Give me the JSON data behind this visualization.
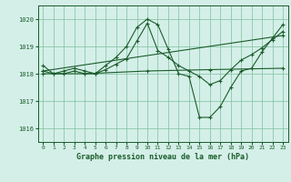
{
  "title": "Graphe pression niveau de la mer (hPa)",
  "background_color": "#d4efe8",
  "line_color": "#1a5c2a",
  "grid_color": "#7fbfa0",
  "ylim": [
    1015.5,
    1020.5
  ],
  "xlim": [
    -0.5,
    23.5
  ],
  "yticks": [
    1016,
    1017,
    1018,
    1019,
    1020
  ],
  "xticks": [
    0,
    1,
    2,
    3,
    4,
    5,
    6,
    7,
    8,
    9,
    10,
    11,
    12,
    13,
    14,
    15,
    16,
    17,
    18,
    19,
    20,
    21,
    22,
    23
  ],
  "series": [
    {
      "x": [
        0,
        1,
        2,
        3,
        4,
        5,
        6,
        7,
        8,
        9,
        10,
        11,
        12,
        13,
        14,
        15,
        16,
        17,
        18,
        19,
        20,
        21,
        22,
        23
      ],
      "y": [
        1018.3,
        1018.0,
        1018.1,
        1018.2,
        1018.1,
        1018.0,
        1018.3,
        1018.6,
        1019.0,
        1019.7,
        1020.0,
        1019.8,
        1018.9,
        1018.0,
        1017.9,
        1016.4,
        1016.4,
        1016.8,
        1017.5,
        1018.1,
        1018.2,
        1018.8,
        1019.3,
        1019.8
      ]
    },
    {
      "x": [
        0,
        23
      ],
      "y": [
        1018.1,
        1019.4
      ]
    },
    {
      "x": [
        0,
        4,
        10,
        16,
        23
      ],
      "y": [
        1018.0,
        1018.0,
        1018.1,
        1018.15,
        1018.2
      ]
    },
    {
      "x": [
        0,
        1,
        2,
        3,
        4,
        5,
        6,
        7,
        8,
        9,
        10,
        11,
        12,
        13,
        14,
        15,
        16,
        17,
        18,
        19,
        20,
        21,
        22,
        23
      ],
      "y": [
        1018.1,
        1018.0,
        1018.0,
        1018.1,
        1018.0,
        1018.0,
        1018.15,
        1018.35,
        1018.55,
        1019.2,
        1019.85,
        1018.85,
        1018.6,
        1018.3,
        1018.1,
        1017.9,
        1017.6,
        1017.75,
        1018.15,
        1018.5,
        1018.7,
        1018.95,
        1019.25,
        1019.55
      ]
    }
  ]
}
